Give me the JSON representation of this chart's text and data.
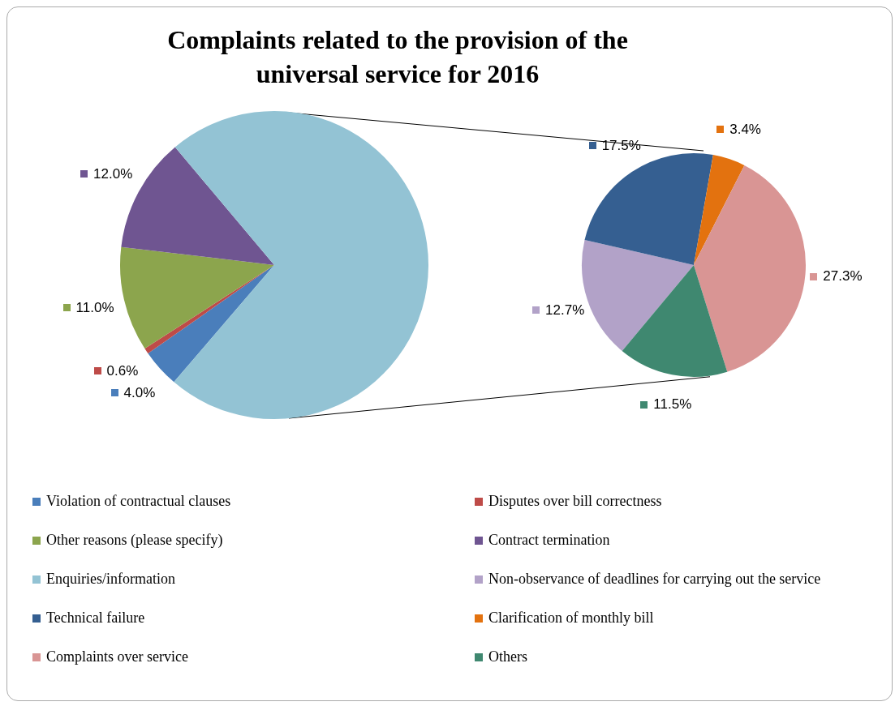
{
  "chart_data": [
    {
      "type": "pie",
      "title": "Complaints related to the provision of the universal service for 2016",
      "categories": [
        "Violation of contractual clauses",
        "Disputes over bill correctness",
        "Other reasons (please specify)",
        "Contract termination",
        "Enquiries/information"
      ],
      "values": [
        4.0,
        0.6,
        11.0,
        12.0,
        72.4
      ],
      "value_labels": [
        "4.0%",
        "0.6%",
        "11.0%",
        "12.0%",
        null
      ],
      "colors": [
        "#4a7ebb",
        "#be4b48",
        "#8ca54d",
        "#6f5591",
        "#93c3d4"
      ],
      "legend": "bottom"
    },
    {
      "type": "pie",
      "categories": [
        "Non-observance of deadlines for carrying out the service",
        "Technical failure",
        "Clarification of monthly bill",
        "Complaints over service",
        "Others"
      ],
      "values": [
        12.7,
        17.5,
        3.4,
        27.3,
        11.5
      ],
      "value_labels": [
        "12.7%",
        "17.5%",
        "3.4%",
        "27.3%",
        "11.5%"
      ],
      "colors": [
        "#b2a2c8",
        "#355f91",
        "#e3720f",
        "#d99594",
        "#3f8870"
      ],
      "legend": "bottom"
    }
  ]
}
